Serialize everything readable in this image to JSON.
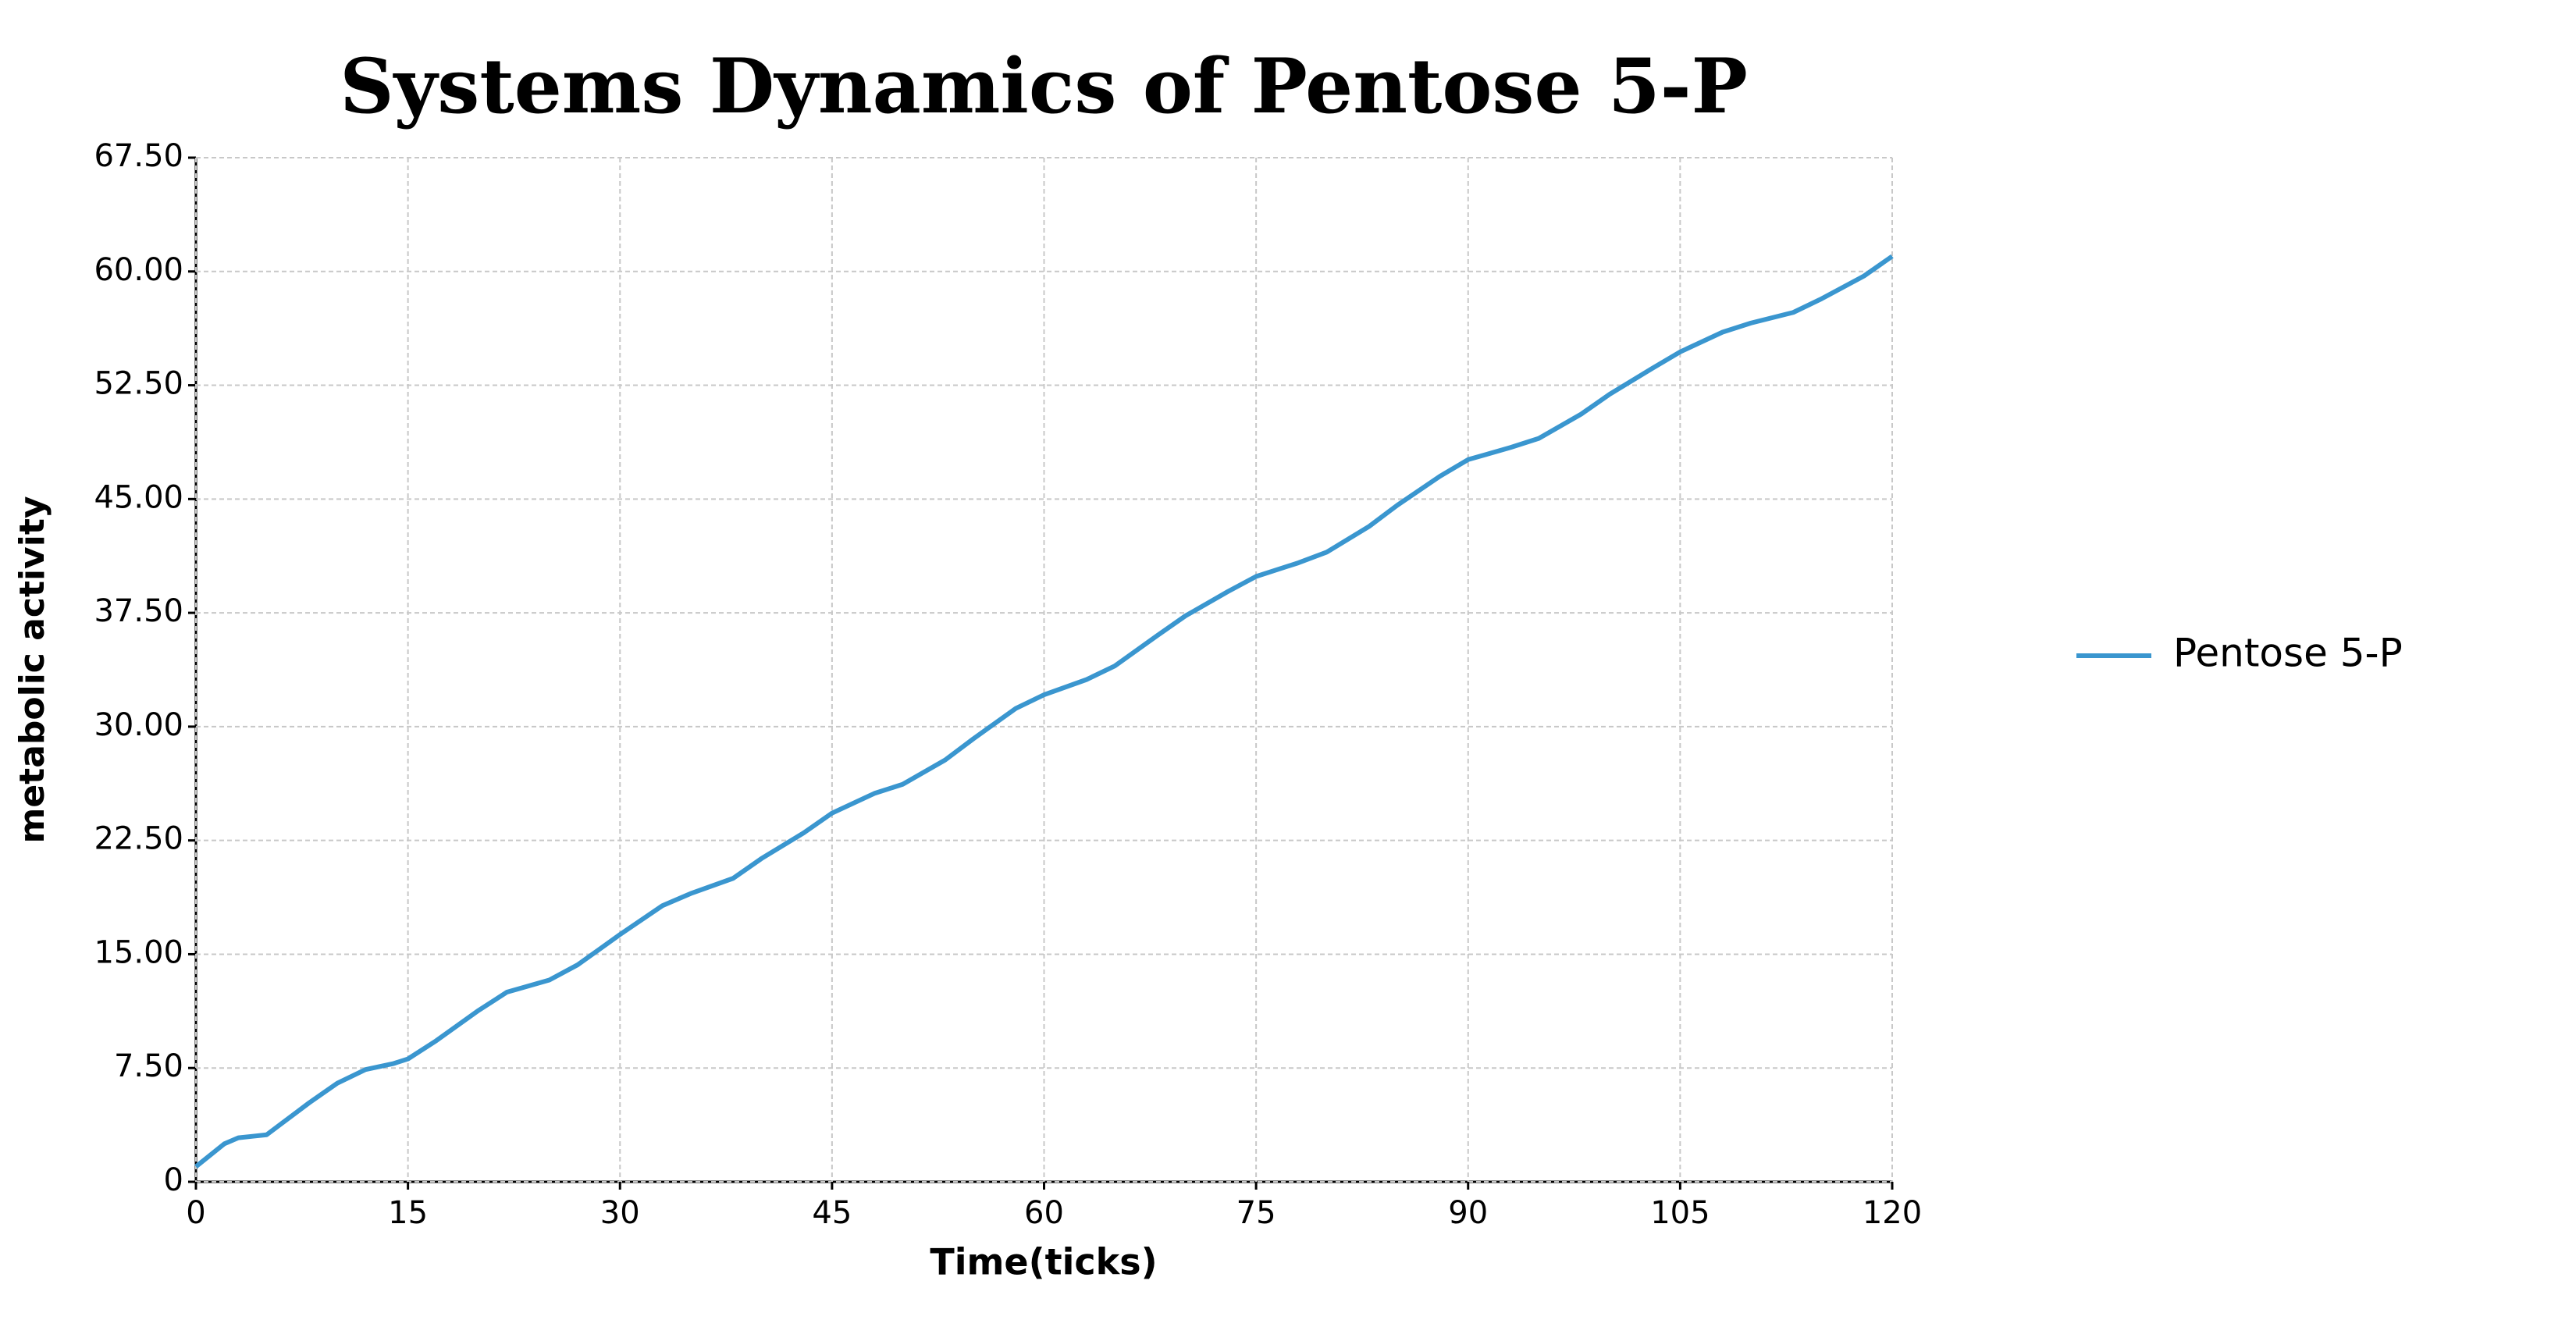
{
  "chart_data": {
    "type": "line",
    "title": "Systems Dynamics of Pentose 5-P",
    "x_label": "Time(ticks)",
    "y_label": "metabolic activity",
    "x": [
      0,
      2,
      3,
      4,
      5,
      6,
      8,
      10,
      12,
      14,
      15,
      17,
      20,
      22,
      25,
      27,
      30,
      33,
      35,
      38,
      40,
      43,
      45,
      48,
      50,
      53,
      55,
      58,
      60,
      63,
      65,
      68,
      70,
      73,
      75,
      78,
      80,
      83,
      85,
      88,
      90,
      93,
      95,
      98,
      100,
      103,
      105,
      108,
      110,
      113,
      115,
      118,
      120
    ],
    "series": [
      {
        "name": "Pentose 5-P",
        "color": "#3a96cf",
        "values": [
          1.0,
          2.5,
          2.9,
          3.0,
          3.1,
          3.8,
          5.2,
          6.5,
          7.4,
          7.8,
          8.1,
          9.3,
          11.3,
          12.5,
          13.3,
          14.3,
          16.3,
          18.2,
          19.0,
          20.0,
          21.3,
          23.0,
          24.3,
          25.6,
          26.2,
          27.8,
          29.2,
          31.2,
          32.1,
          33.1,
          34.0,
          36.0,
          37.3,
          38.9,
          39.9,
          40.8,
          41.5,
          43.2,
          44.6,
          46.5,
          47.6,
          48.4,
          49.0,
          50.6,
          51.9,
          53.6,
          54.7,
          56.0,
          56.6,
          57.3,
          58.2,
          59.7,
          61.0
        ]
      }
    ],
    "xlim": [
      0,
      120
    ],
    "xticks": [
      0,
      15,
      30,
      45,
      60,
      75,
      90,
      105,
      120
    ],
    "ylim": [
      0,
      67.5
    ],
    "yticks": [
      0,
      {
        "value": 7.5,
        "label": "7.50"
      },
      {
        "value": 15,
        "label": "15.00"
      },
      {
        "value": 22.5,
        "label": "22.50"
      },
      {
        "value": 30,
        "label": "30.00"
      },
      {
        "value": 37.5,
        "label": "37.50"
      },
      {
        "value": 45,
        "label": "45.00"
      },
      {
        "value": 52.5,
        "label": "52.50"
      },
      {
        "value": 60,
        "label": "60.00"
      },
      {
        "value": 67.5,
        "label": "67.50"
      }
    ],
    "grid": true,
    "legend": "right"
  }
}
